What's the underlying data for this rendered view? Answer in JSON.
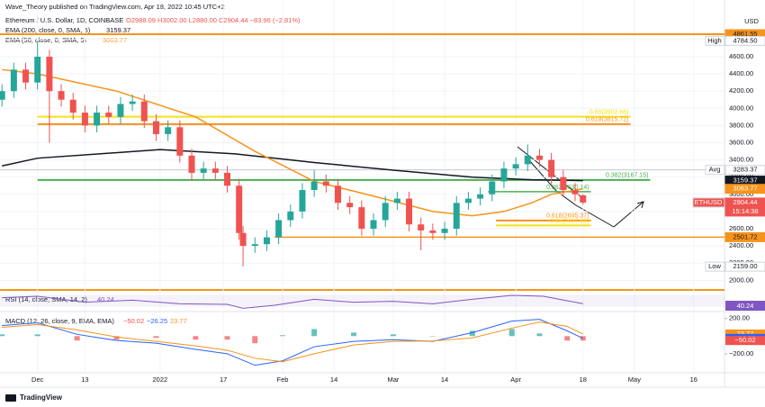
{
  "header": {
    "publisher": "Wave_Theory published on TradingView.com, Apr 18, 2022 10:45 UTC+2",
    "symbol": "Ethereum / U.S. Dollar, 1D, COINBASE",
    "ohlc": "O2988.09 H3002.00 L2880.00 C2904.44 −83.96 (−2.81%)",
    "ema200": "EMA (200, close, 0, SMA, 5)",
    "ema200_value": "3159.37",
    "ema50": "EMA (50, close, 0, SMA, 5)",
    "ema50_value": "3063.77",
    "rsi": "RSI (14, close, SMA, 14, 2)",
    "rsi_value": "40.24",
    "macd": "MACD (12, 26, close, 9, EMA, EMA)",
    "macd_values": [
      "−50.02",
      "−26.25",
      "23.77"
    ],
    "currency": "USD",
    "logo": "TradingView"
  },
  "chart_data": {
    "type": "candlestick",
    "xlim": [
      -9.5,
      173.8
    ],
    "xticks": [
      {
        "value": 0,
        "label": "Dec"
      },
      {
        "value": 12,
        "label": "13"
      },
      {
        "value": 31,
        "label": "2022"
      },
      {
        "value": 47,
        "label": "17"
      },
      {
        "value": 62,
        "label": "Feb"
      },
      {
        "value": 75,
        "label": "14"
      },
      {
        "value": 90,
        "label": "Mar"
      },
      {
        "value": 103,
        "label": "14"
      },
      {
        "value": 121,
        "label": "Apr"
      },
      {
        "value": 138,
        "label": "18"
      },
      {
        "value": 151,
        "label": "May"
      },
      {
        "value": 166,
        "label": "16"
      }
    ],
    "ylim": [
      1930,
      5050
    ],
    "yticks": [
      {
        "value": 2000,
        "label": "2000.00"
      },
      {
        "value": 2200,
        "label": "2200.00"
      },
      {
        "value": 2400,
        "label": "2400.00"
      },
      {
        "value": 2600,
        "label": "2600.00"
      },
      {
        "value": 2800,
        "label": "2800.00"
      },
      {
        "value": 3000,
        "label": "3000.00"
      },
      {
        "value": 3200,
        "label": "3200.00"
      },
      {
        "value": 3400,
        "label": "3400.00"
      },
      {
        "value": 3600,
        "label": "3600.00"
      },
      {
        "value": 3800,
        "label": "3800.00"
      },
      {
        "value": 4000,
        "label": "4000.00"
      },
      {
        "value": 4200,
        "label": "4200.00"
      },
      {
        "value": 4400,
        "label": "4400.00"
      },
      {
        "value": 4600,
        "label": "4600.00"
      },
      {
        "value": 4800,
        "label": "4800.00"
      }
    ],
    "up_color": "#26a69a",
    "down_color": "#ef5350",
    "candles": {
      "x": [
        -9,
        -6,
        -3,
        0,
        3,
        6,
        9,
        12,
        15,
        18,
        21,
        24,
        27,
        30,
        33,
        36,
        39,
        42,
        45,
        48,
        51,
        52,
        55,
        58,
        61,
        64,
        67,
        70,
        73,
        76,
        79,
        82,
        85,
        88,
        91,
        94,
        97,
        100,
        103,
        106,
        109,
        112,
        115,
        118,
        121,
        124,
        127,
        130,
        133,
        136,
        138
      ],
      "open": [
        4100,
        4200,
        4450,
        4300,
        4600,
        4200,
        4100,
        3950,
        3800,
        3950,
        3900,
        4050,
        4080,
        3850,
        3700,
        3780,
        3450,
        3250,
        3300,
        3250,
        3100,
        2550,
        2400,
        2420,
        2500,
        2700,
        2800,
        3050,
        3150,
        3100,
        2900,
        2850,
        2600,
        2700,
        2900,
        2950,
        2650,
        2580,
        2550,
        2600,
        2900,
        2950,
        3000,
        3150,
        3300,
        3350,
        3450,
        3400,
        3200,
        3050,
        2988.09
      ],
      "high": [
        4280,
        4530,
        4530,
        4784.5,
        4680,
        4280,
        4180,
        4030,
        4030,
        4030,
        4130,
        4160,
        4160,
        3930,
        3860,
        3860,
        3530,
        3380,
        3380,
        3330,
        3180,
        2630,
        2500,
        2580,
        2780,
        2880,
        3130,
        3280,
        3230,
        3180,
        2980,
        2930,
        2780,
        2980,
        3030,
        3030,
        2730,
        2660,
        2680,
        2980,
        3030,
        3080,
        3230,
        3380,
        3430,
        3580,
        3530,
        3480,
        3280,
        3130,
        3002
      ],
      "low": [
        4020,
        4120,
        4220,
        4220,
        3600,
        4020,
        3870,
        3720,
        3720,
        3820,
        3820,
        3970,
        3770,
        3620,
        3620,
        3370,
        3170,
        3170,
        3170,
        3020,
        2470,
        2159,
        2320,
        2340,
        2420,
        2620,
        2720,
        2970,
        3020,
        2820,
        2770,
        2520,
        2520,
        2620,
        2820,
        2570,
        2350,
        2470,
        2470,
        2520,
        2820,
        2870,
        2920,
        3070,
        3220,
        3270,
        3320,
        3120,
        2970,
        2920,
        2880
      ],
      "close": [
        4200,
        4450,
        4300,
        4600,
        4200,
        4100,
        3950,
        3800,
        3950,
        3900,
        4050,
        4080,
        3850,
        3700,
        3780,
        3450,
        3250,
        3300,
        3250,
        3100,
        2550,
        2400,
        2420,
        2500,
        2700,
        2800,
        3050,
        3150,
        3100,
        2900,
        2850,
        2600,
        2700,
        2900,
        2950,
        2650,
        2580,
        2550,
        2600,
        2900,
        2950,
        3000,
        3150,
        3300,
        3350,
        3450,
        3400,
        3200,
        3050,
        3000,
        2904.44
      ]
    },
    "lines": [
      {
        "name": "EMA 200",
        "color": "#131722",
        "x": [
          -9,
          0,
          31,
          50,
          70,
          90,
          110,
          125,
          138
        ],
        "values": [
          3330,
          3420,
          3520,
          3470,
          3370,
          3280,
          3200,
          3170,
          3159.37
        ]
      },
      {
        "name": "EMA 50",
        "color": "#f7931a",
        "x": [
          -9,
          0,
          20,
          40,
          55,
          70,
          85,
          100,
          110,
          118,
          125,
          130,
          138
        ],
        "values": [
          4450,
          4400,
          4200,
          3900,
          3500,
          3150,
          2980,
          2800,
          2750,
          2800,
          2900,
          3000,
          3063.77
        ]
      }
    ],
    "levels": [
      {
        "value": 4861.55,
        "color": "#f7931a",
        "from": -9.5,
        "to": 173.8,
        "width": 2
      },
      {
        "value": 3902.66,
        "color": "#f5e11b",
        "from": 0,
        "to": 150,
        "width": 2,
        "label": "0.65(3902.66)"
      },
      {
        "value": 3815.72,
        "color": "#f7931a",
        "from": 0,
        "to": 150,
        "width": 2,
        "label": "0.618(3815.72)"
      },
      {
        "value": 3167.15,
        "color": "#4caf50",
        "from": 0,
        "to": 155,
        "width": 2,
        "label": "0.382(3167.15)"
      },
      {
        "value": 3030.14,
        "color": "#4caf50",
        "from": 114,
        "to": 140,
        "width": 1.5,
        "label": "0.382(3030.14)"
      },
      {
        "value": 2695.37,
        "color": "#f7931a",
        "from": 116,
        "to": 140,
        "width": 2,
        "label": "0.618(2695.37)"
      },
      {
        "value": 2637.69,
        "color": "#f5e11b",
        "from": 116,
        "to": 140,
        "width": 2,
        "label": "0.65(2637.69)"
      },
      {
        "value": 2501.72,
        "color": "#f7931a",
        "from": 60,
        "to": 173.8,
        "width": 1.5
      },
      {
        "value": 3283.37,
        "color": "#b2b5be",
        "from": -9.5,
        "to": 173.8,
        "width": 0.8
      }
    ],
    "badges": [
      {
        "value": 4861.55,
        "bg": "#f7931a",
        "fg": "#131722"
      },
      {
        "value": 4784.5,
        "label": "4784.50",
        "tag": "High",
        "bg": "#ffffff",
        "fg": "#131722"
      },
      {
        "value": 3283.37,
        "tag": "Avg",
        "bg": "#ffffff",
        "fg": "#131722"
      },
      {
        "value": 3159.37,
        "bg": "#131722",
        "fg": "#ffffff"
      },
      {
        "value": 3063.77,
        "bg": "#f7931a",
        "fg": "#ffffff"
      },
      {
        "value": 2904.44,
        "tag": "ETHUSD",
        "sub": "15:14:38",
        "bg": "#ef5350",
        "fg": "#ffffff"
      },
      {
        "value": 2501.72,
        "bg": "#f7931a",
        "fg": "#131722"
      },
      {
        "value": 2159,
        "label": "2159.00",
        "tag": "Low",
        "bg": "#ffffff",
        "fg": "#131722"
      }
    ],
    "rsi": {
      "color": "#7e57c2",
      "ylim": [
        20,
        80
      ],
      "x": [
        -9,
        0,
        12,
        24,
        36,
        48,
        52,
        60,
        70,
        80,
        90,
        100,
        110,
        120,
        128,
        134,
        138
      ],
      "values": [
        60,
        65,
        45,
        52,
        40,
        38,
        25,
        35,
        55,
        45,
        48,
        40,
        55,
        68,
        65,
        50,
        40.24
      ]
    },
    "macd": {
      "ylim": [
        -415,
        278
      ],
      "yticks": [
        {
          "value": 200,
          "label": "200.00"
        },
        {
          "value": -200,
          "label": "−200.00"
        }
      ],
      "x": [
        -9,
        0,
        10,
        20,
        30,
        40,
        48,
        55,
        62,
        70,
        80,
        90,
        100,
        110,
        120,
        127,
        134,
        138
      ],
      "macd": [
        120,
        150,
        20,
        -50,
        -80,
        -150,
        -200,
        -330,
        -280,
        -120,
        -60,
        -40,
        -60,
        40,
        170,
        190,
        60,
        -26.25
      ],
      "signal": [
        100,
        130,
        70,
        -10,
        -60,
        -110,
        -160,
        -250,
        -290,
        -200,
        -100,
        -60,
        -55,
        -20,
        90,
        160,
        110,
        23.77
      ],
      "histogram": [
        20,
        20,
        -50,
        -40,
        -20,
        -40,
        -40,
        -80,
        10,
        80,
        40,
        20,
        -5,
        60,
        80,
        30,
        -50,
        -50.02
      ],
      "macd_color": "#2962ff",
      "signal_color": "#f7931a"
    }
  }
}
